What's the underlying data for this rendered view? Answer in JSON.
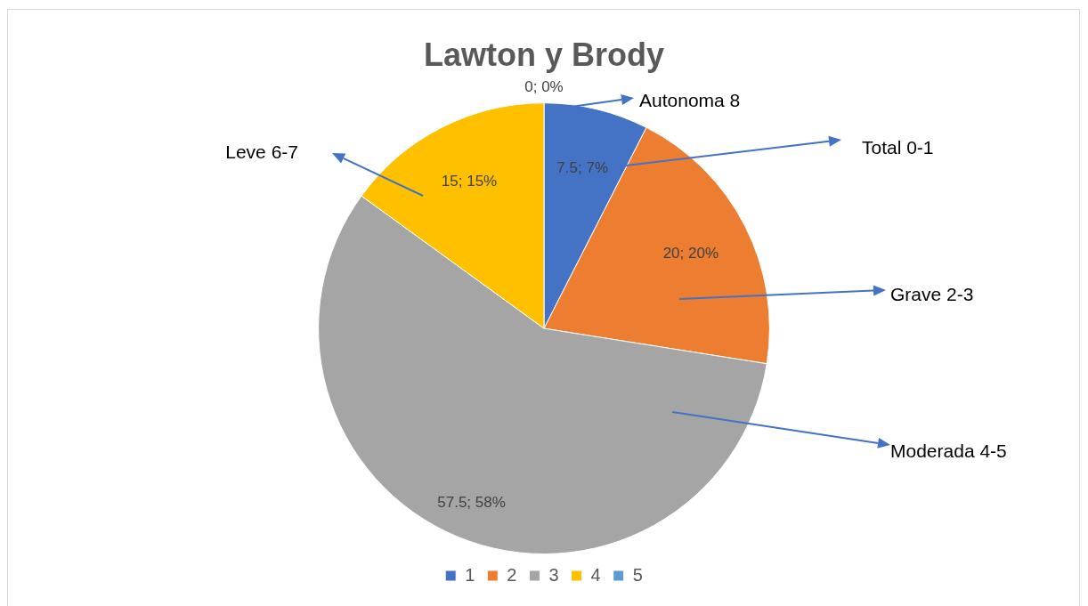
{
  "chart_data": {
    "type": "pie",
    "title": "Lawton y Brody",
    "categories": [
      "1",
      "2",
      "3",
      "4",
      "5"
    ],
    "values": [
      7.5,
      20,
      57.5,
      15,
      0
    ],
    "colors": [
      "#4472c4",
      "#ed7d31",
      "#a5a5a5",
      "#ffc000",
      "#5b9bd5"
    ],
    "value_labels": [
      "7.5; 7%",
      "20; 20%",
      "57.5; 58%",
      "15; 15%",
      "0; 0%"
    ],
    "annotations": [
      "Autonoma 8",
      "Total 0-1",
      "Grave 2-3",
      "Moderada 4-5",
      "Leve 6-7"
    ],
    "legend": "bottom"
  }
}
